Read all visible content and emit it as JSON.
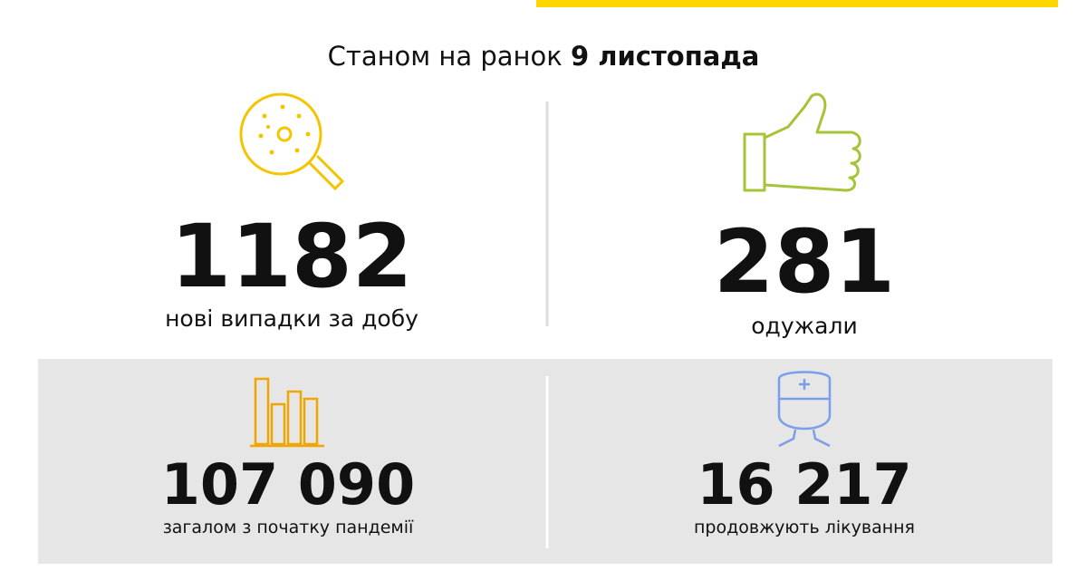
{
  "header": {
    "prefix": "Станом на ранок",
    "date": "9 листопада"
  },
  "stats": [
    {
      "number": "1182",
      "label": "нові випадки за добу"
    },
    {
      "number": "281",
      "label": "одужали"
    },
    {
      "number": "107 090",
      "label": "загалом з початку пандемії"
    },
    {
      "number": "16 217",
      "label": "продовжують лікування"
    }
  ]
}
